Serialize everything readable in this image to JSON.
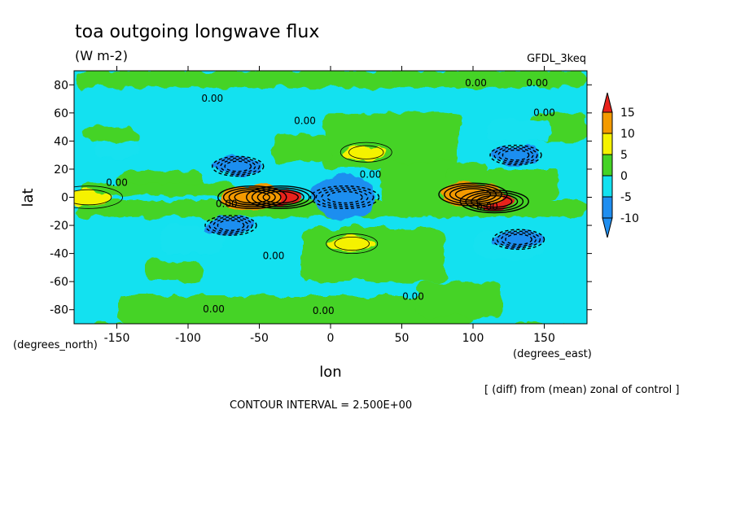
{
  "chart_data": {
    "type": "heatmap",
    "title": "toa outgoing longwave flux",
    "units": "(W m-2)",
    "model_label": "GFDL_3keq",
    "xlabel": "lon",
    "ylabel": "lat",
    "x_units": "(degrees_east)",
    "y_units": "(degrees_north)",
    "xlim": [
      -180,
      180
    ],
    "ylim": [
      -90,
      90
    ],
    "x_ticks": [
      -150,
      -100,
      -50,
      0,
      50,
      100,
      150
    ],
    "y_ticks": [
      80,
      60,
      40,
      20,
      0,
      -20,
      -40,
      -60,
      -80
    ],
    "note": "[ (diff) from (mean) zonal of control ]",
    "contour_interval": "CONTOUR INTERVAL = 2.500E+00",
    "colorbar": {
      "levels": [
        "15",
        "10",
        "5",
        "0",
        "-5",
        "-10"
      ],
      "colors": [
        "#e8221b",
        "#f39a00",
        "#f5f200",
        "#44d325",
        "#13e1f0",
        "#1f8ef0"
      ]
    },
    "contour_labels": [
      "0.00"
    ],
    "anomalies": [
      {
        "lon": -35,
        "lat": 0,
        "value": 15
      },
      {
        "lon": -55,
        "lat": 0,
        "value": 10
      },
      {
        "lon": 115,
        "lat": -3,
        "value": 15
      },
      {
        "lon": 100,
        "lat": 2,
        "value": 10
      },
      {
        "lon": 10,
        "lat": 0,
        "value": -10
      },
      {
        "lon": -65,
        "lat": 22,
        "value": -10
      },
      {
        "lon": -70,
        "lat": -20,
        "value": -10
      },
      {
        "lon": 132,
        "lat": -30,
        "value": -10
      },
      {
        "lon": 130,
        "lat": 30,
        "value": -10
      },
      {
        "lon": 25,
        "lat": 32,
        "value": 5
      },
      {
        "lon": 15,
        "lat": -33,
        "value": 5
      },
      {
        "lon": -170,
        "lat": 0,
        "value": 5
      }
    ]
  }
}
